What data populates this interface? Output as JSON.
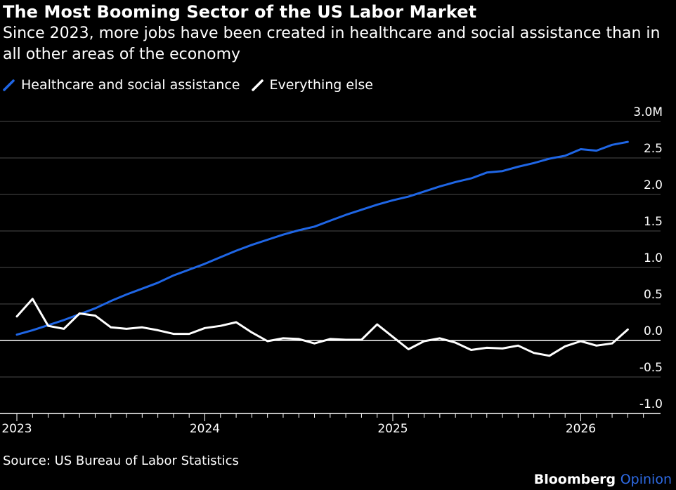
{
  "header": {
    "title": "The Most Booming Sector of the US Labor Market",
    "subtitle": "Since 2023, more jobs have been created in healthcare and social assistance than in all other areas of the economy"
  },
  "footer": {
    "source": "Source: US Bureau of Labor Statistics",
    "brand_main": "Bloomberg",
    "brand_sub": "Opinion",
    "brand_sub_color": "#2e6be6"
  },
  "chart_data": {
    "type": "line",
    "xlabel": "",
    "ylabel": "",
    "grid": true,
    "legend_position": "top-left",
    "x_ticks": [
      "2023",
      "2024",
      "2025",
      "2026"
    ],
    "y_ticks": [
      "3.0M",
      "2.5",
      "2.0",
      "1.5",
      "1.0",
      "0.5",
      "0.0",
      "-0.5",
      "-1.0"
    ],
    "ylim": [
      -1.0,
      3.0
    ],
    "x_start": "2023-01",
    "x": [
      "2023-01",
      "2023-02",
      "2023-03",
      "2023-04",
      "2023-05",
      "2023-06",
      "2023-07",
      "2023-08",
      "2023-09",
      "2023-10",
      "2023-11",
      "2023-12",
      "2024-01",
      "2024-02",
      "2024-03",
      "2024-04",
      "2024-05",
      "2024-06",
      "2024-07",
      "2024-08",
      "2024-09",
      "2024-10",
      "2024-11",
      "2024-12",
      "2025-01",
      "2025-02",
      "2025-03",
      "2025-04",
      "2025-05",
      "2025-06",
      "2025-07",
      "2025-08",
      "2025-09",
      "2025-10",
      "2025-11",
      "2025-12",
      "2026-01",
      "2026-02",
      "2026-03",
      "2026-04"
    ],
    "series": [
      {
        "name": "Healthcare and social assistance",
        "color": "#1f66e5",
        "values": [
          0.08,
          0.14,
          0.21,
          0.28,
          0.36,
          0.44,
          0.54,
          0.63,
          0.71,
          0.79,
          0.89,
          0.97,
          1.05,
          1.14,
          1.23,
          1.31,
          1.38,
          1.45,
          1.51,
          1.56,
          1.64,
          1.72,
          1.79,
          1.86,
          1.92,
          1.97,
          2.04,
          2.11,
          2.17,
          2.22,
          2.3,
          2.32,
          2.38,
          2.43,
          2.49,
          2.53,
          2.62,
          2.6,
          2.68,
          2.72
        ]
      },
      {
        "name": "Everything else",
        "color": "#ffffff",
        "values": [
          0.33,
          0.57,
          0.2,
          0.16,
          0.37,
          0.34,
          0.18,
          0.16,
          0.18,
          0.14,
          0.09,
          0.09,
          0.17,
          0.2,
          0.25,
          0.11,
          -0.01,
          0.03,
          0.02,
          -0.04,
          0.02,
          0.01,
          0.01,
          0.22,
          0.05,
          -0.12,
          -0.01,
          0.03,
          -0.03,
          -0.13,
          -0.1,
          -0.11,
          -0.07,
          -0.17,
          -0.21,
          -0.08,
          -0.01,
          -0.07,
          -0.04,
          0.15
        ]
      }
    ]
  }
}
